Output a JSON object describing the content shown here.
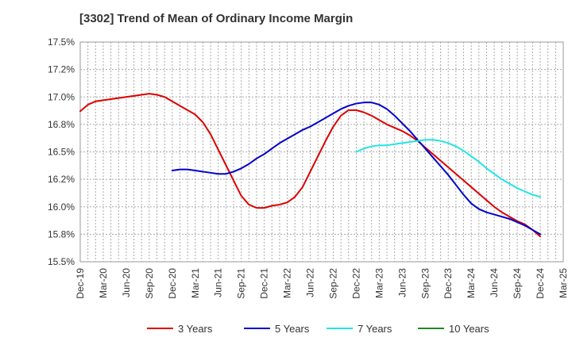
{
  "chart_data": {
    "type": "line",
    "title": "[3302]  Trend of Mean of Ordinary Income Margin",
    "ylim": [
      15.5,
      17.5
    ],
    "y_ticks": [
      "15.5%",
      "15.8%",
      "16.0%",
      "16.2%",
      "16.5%",
      "16.8%",
      "17.0%",
      "17.2%",
      "17.5%"
    ],
    "y_tick_values": [
      15.5,
      15.75,
      16.0,
      16.25,
      16.5,
      16.75,
      17.0,
      17.25,
      17.5
    ],
    "x_ticks": [
      "Dec-19",
      "Mar-20",
      "Jun-20",
      "Sep-20",
      "Dec-20",
      "Mar-21",
      "Jun-21",
      "Sep-21",
      "Dec-21",
      "Mar-22",
      "Jun-22",
      "Sep-22",
      "Dec-22",
      "Mar-23",
      "Jun-23",
      "Sep-23",
      "Dec-23",
      "Mar-24",
      "Jun-24",
      "Sep-24",
      "Dec-24",
      "Mar-25"
    ],
    "grid": true,
    "legend_position": "bottom",
    "series": [
      {
        "name": "3 Years",
        "color": "#dd0000",
        "x": [
          "Dec-19",
          "Jan-20",
          "Feb-20",
          "Mar-20",
          "Apr-20",
          "May-20",
          "Jun-20",
          "Jul-20",
          "Aug-20",
          "Sep-20",
          "Oct-20",
          "Nov-20",
          "Dec-20",
          "Jan-21",
          "Feb-21",
          "Mar-21",
          "Apr-21",
          "May-21",
          "Jun-21",
          "Jul-21",
          "Aug-21",
          "Sep-21",
          "Oct-21",
          "Nov-21",
          "Dec-21",
          "Jan-22",
          "Feb-22",
          "Mar-22",
          "Apr-22",
          "May-22",
          "Jun-22",
          "Jul-22",
          "Aug-22",
          "Sep-22",
          "Oct-22",
          "Nov-22",
          "Dec-22",
          "Jan-23",
          "Feb-23",
          "Mar-23",
          "Apr-23",
          "May-23",
          "Jun-23",
          "Jul-23",
          "Aug-23",
          "Sep-23",
          "Oct-23",
          "Nov-23",
          "Dec-23",
          "Jan-24",
          "Feb-24",
          "Mar-24",
          "Apr-24",
          "May-24",
          "Jun-24",
          "Jul-24",
          "Aug-24",
          "Sep-24",
          "Oct-24",
          "Nov-24",
          "Dec-24"
        ],
        "values": [
          16.87,
          16.93,
          16.96,
          16.97,
          16.98,
          16.99,
          17.0,
          17.01,
          17.02,
          17.03,
          17.02,
          17.0,
          16.96,
          16.92,
          16.88,
          16.84,
          16.77,
          16.66,
          16.52,
          16.38,
          16.24,
          16.1,
          16.02,
          15.99,
          15.99,
          16.01,
          16.02,
          16.04,
          16.09,
          16.18,
          16.32,
          16.46,
          16.6,
          16.73,
          16.83,
          16.88,
          16.88,
          16.86,
          16.83,
          16.79,
          16.75,
          16.72,
          16.69,
          16.65,
          16.6,
          16.54,
          16.48,
          16.42,
          16.36,
          16.3,
          16.24,
          16.18,
          16.12,
          16.06,
          16.0,
          15.95,
          15.91,
          15.87,
          15.84,
          15.79,
          15.73
        ]
      },
      {
        "name": "5 Years",
        "color": "#0000cc",
        "x": [
          "Dec-20",
          "Jan-21",
          "Feb-21",
          "Mar-21",
          "Apr-21",
          "May-21",
          "Jun-21",
          "Jul-21",
          "Aug-21",
          "Sep-21",
          "Oct-21",
          "Nov-21",
          "Dec-21",
          "Jan-22",
          "Feb-22",
          "Mar-22",
          "Apr-22",
          "May-22",
          "Jun-22",
          "Jul-22",
          "Aug-22",
          "Sep-22",
          "Oct-22",
          "Nov-22",
          "Dec-22",
          "Jan-23",
          "Feb-23",
          "Mar-23",
          "Apr-23",
          "May-23",
          "Jun-23",
          "Jul-23",
          "Aug-23",
          "Sep-23",
          "Oct-23",
          "Nov-23",
          "Dec-23",
          "Jan-24",
          "Feb-24",
          "Mar-24",
          "Apr-24",
          "May-24",
          "Jun-24",
          "Jul-24",
          "Aug-24",
          "Sep-24",
          "Oct-24",
          "Nov-24",
          "Dec-24"
        ],
        "values": [
          16.33,
          16.34,
          16.34,
          16.33,
          16.32,
          16.31,
          16.3,
          16.3,
          16.32,
          16.35,
          16.39,
          16.44,
          16.48,
          16.53,
          16.58,
          16.62,
          16.66,
          16.7,
          16.73,
          16.77,
          16.81,
          16.85,
          16.89,
          16.92,
          16.94,
          16.95,
          16.95,
          16.93,
          16.89,
          16.83,
          16.76,
          16.69,
          16.61,
          16.53,
          16.45,
          16.37,
          16.29,
          16.2,
          16.11,
          16.03,
          15.98,
          15.95,
          15.93,
          15.91,
          15.89,
          15.86,
          15.83,
          15.79,
          15.75
        ]
      },
      {
        "name": "7 Years",
        "color": "#22e5e5",
        "x": [
          "Dec-22",
          "Jan-23",
          "Feb-23",
          "Mar-23",
          "Apr-23",
          "May-23",
          "Jun-23",
          "Jul-23",
          "Aug-23",
          "Sep-23",
          "Oct-23",
          "Nov-23",
          "Dec-23",
          "Jan-24",
          "Feb-24",
          "Mar-24",
          "Apr-24",
          "May-24",
          "Jun-24",
          "Jul-24",
          "Aug-24",
          "Sep-24",
          "Oct-24",
          "Nov-24",
          "Dec-24"
        ],
        "values": [
          16.5,
          16.53,
          16.55,
          16.56,
          16.56,
          16.57,
          16.58,
          16.59,
          16.6,
          16.61,
          16.61,
          16.6,
          16.58,
          16.55,
          16.51,
          16.46,
          16.41,
          16.35,
          16.3,
          16.25,
          16.21,
          16.17,
          16.14,
          16.11,
          16.09
        ]
      },
      {
        "name": "10 Years",
        "color": "#228822",
        "x": [],
        "values": []
      }
    ]
  }
}
